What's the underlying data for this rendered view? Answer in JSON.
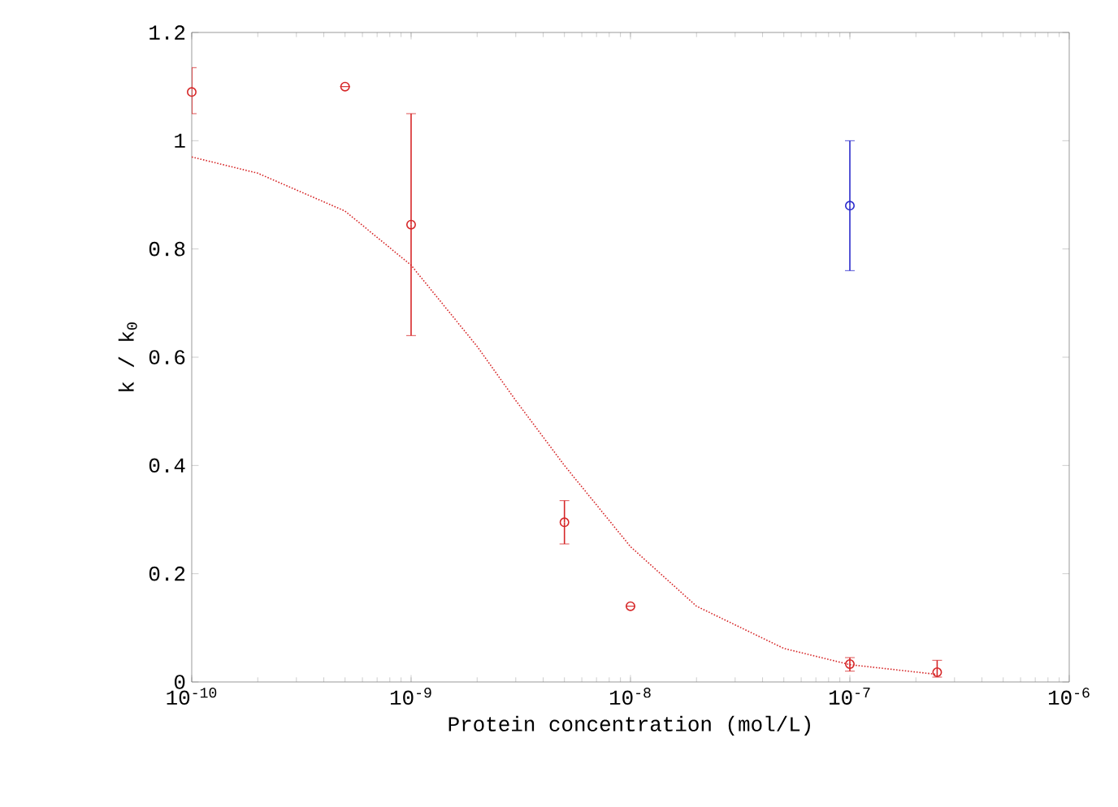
{
  "chart_data": {
    "type": "scatter",
    "xlabel": "Protein concentration (mol/L)",
    "ylabel": "k / k$_{0}$",
    "log": "x",
    "grid": false,
    "marker": "circle",
    "xlim": [
      1e-10,
      1e-06
    ],
    "ylim": [
      0,
      1.2
    ],
    "xticks": [
      {
        "value": 1e-10,
        "label": "10$^{-10}$"
      },
      {
        "value": 1e-09,
        "label": "10$^{-9}$"
      },
      {
        "value": 1e-08,
        "label": "10$^{-8}$"
      },
      {
        "value": 1e-07,
        "label": "10$^{-7}$"
      },
      {
        "value": 1e-06,
        "label": "10$^{-6}$"
      }
    ],
    "yticks": [
      0,
      0.2,
      0.4,
      0.6,
      0.8,
      1,
      1.2
    ],
    "series": [
      {
        "color": "#d62728",
        "x": [
          1e-10,
          5e-10,
          1e-09,
          5e-09,
          1e-08,
          1e-07,
          2.5e-07
        ],
        "values": [
          1.09,
          1.1,
          0.845,
          0.295,
          0.14,
          0.033,
          0.018
        ],
        "errors": [
          [
            1.05,
            1.135
          ],
          null,
          [
            0.64,
            1.05
          ],
          [
            0.255,
            0.335
          ],
          null,
          [
            0.02,
            0.045
          ],
          [
            0.009,
            0.04
          ]
        ]
      },
      {
        "color": "#2b2bcc",
        "x": [
          1e-07
        ],
        "values": [
          0.88
        ],
        "errors": [
          [
            0.76,
            1.0
          ]
        ]
      },
      {
        "type": "line",
        "color": "#d62728",
        "line_style": "dotted",
        "marker": "none",
        "x": [
          1e-10,
          2e-10,
          5e-10,
          1e-09,
          2e-09,
          3e-09,
          5e-09,
          1e-08,
          2e-08,
          5e-08,
          1e-07,
          2.5e-07
        ],
        "values": [
          0.97,
          0.94,
          0.87,
          0.77,
          0.62,
          0.52,
          0.4,
          0.25,
          0.14,
          0.062,
          0.032,
          0.014
        ]
      }
    ]
  }
}
